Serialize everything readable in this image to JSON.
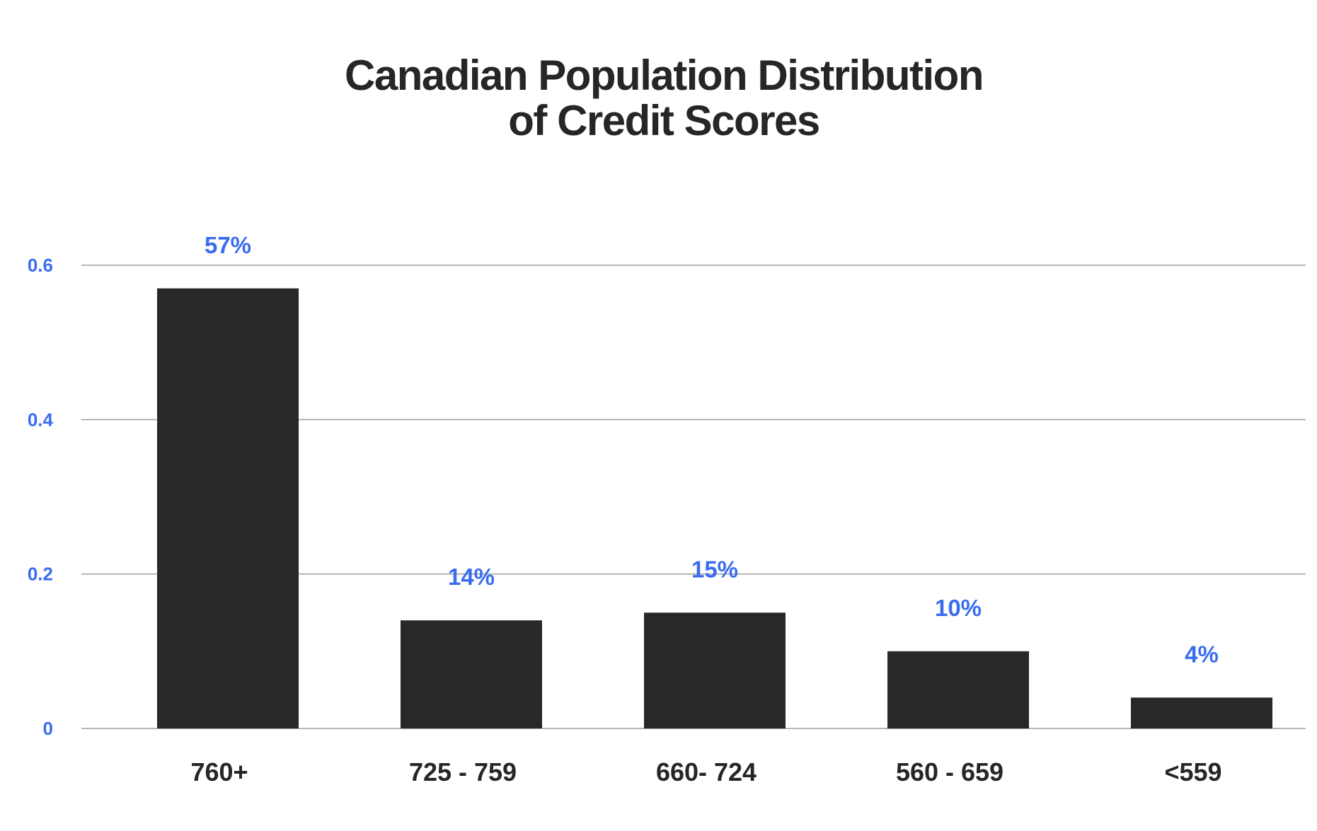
{
  "chart_data": {
    "type": "bar",
    "title_lines": [
      "Canadian Population Distribution",
      "of Credit Scores"
    ],
    "categories": [
      "760+",
      "725 - 759",
      "660- 724",
      "560 - 659",
      "<559"
    ],
    "values": [
      0.57,
      0.14,
      0.15,
      0.1,
      0.04
    ],
    "data_labels": [
      "57%",
      "14%",
      "15%",
      "10%",
      "4%"
    ],
    "yticks": [
      0,
      0.2,
      0.4,
      0.6
    ],
    "ytick_labels": [
      "0",
      "0.2",
      "0.4",
      "0.6"
    ],
    "ylim": [
      0,
      0.6
    ],
    "xlabel": "",
    "ylabel": "",
    "grid": true,
    "legend": "none",
    "colors": {
      "bar": "#282828",
      "accent": "#3a6cf0",
      "text": "#262626",
      "grid": "#9e9e9e"
    }
  }
}
